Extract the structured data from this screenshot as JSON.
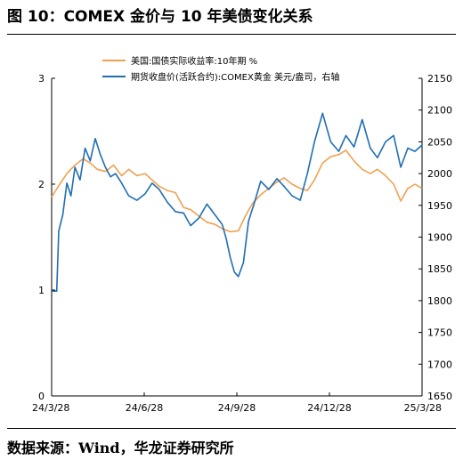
{
  "figure": {
    "title": "图 10：COMEX 金价与 10 年美债变化关系",
    "source": "数据来源：Wind，华龙证券研究所"
  },
  "chart_data": {
    "type": "line",
    "x_tick_labels": [
      "24/3/28",
      "24/6/28",
      "24/9/28",
      "24/12/28",
      "25/3/28"
    ],
    "x_range": [
      "2024-03-28",
      "2025-03-28"
    ],
    "y_left": {
      "ticks": [
        "0",
        "1",
        "2",
        "3"
      ],
      "range": [
        0,
        3
      ]
    },
    "y_right": {
      "ticks": [
        "1650",
        "1700",
        "1750",
        "1800",
        "1850",
        "1900",
        "1950",
        "2000",
        "2050",
        "2100",
        "2150"
      ],
      "range": [
        1650,
        2150
      ]
    },
    "legend_position": "top",
    "grid": false,
    "series": [
      {
        "name": "美国:国债实际收益率:10年期 %",
        "axis": "left",
        "color": "#F0A050",
        "points": [
          [
            "2024-03-28",
            1.88
          ],
          [
            "2024-04-05",
            2.0
          ],
          [
            "2024-04-12",
            2.1
          ],
          [
            "2024-04-20",
            2.18
          ],
          [
            "2024-04-28",
            2.24
          ],
          [
            "2024-05-05",
            2.2
          ],
          [
            "2024-05-12",
            2.14
          ],
          [
            "2024-05-20",
            2.12
          ],
          [
            "2024-05-28",
            2.18
          ],
          [
            "2024-06-05",
            2.08
          ],
          [
            "2024-06-12",
            2.14
          ],
          [
            "2024-06-20",
            2.08
          ],
          [
            "2024-06-28",
            2.1
          ],
          [
            "2024-07-05",
            2.04
          ],
          [
            "2024-07-12",
            1.98
          ],
          [
            "2024-07-20",
            1.94
          ],
          [
            "2024-07-28",
            1.92
          ],
          [
            "2024-08-05",
            1.78
          ],
          [
            "2024-08-12",
            1.76
          ],
          [
            "2024-08-20",
            1.7
          ],
          [
            "2024-08-28",
            1.64
          ],
          [
            "2024-09-05",
            1.62
          ],
          [
            "2024-09-12",
            1.58
          ],
          [
            "2024-09-20",
            1.55
          ],
          [
            "2024-09-28",
            1.56
          ],
          [
            "2024-10-05",
            1.7
          ],
          [
            "2024-10-12",
            1.82
          ],
          [
            "2024-10-20",
            1.9
          ],
          [
            "2024-10-28",
            1.96
          ],
          [
            "2024-11-05",
            2.02
          ],
          [
            "2024-11-12",
            2.06
          ],
          [
            "2024-11-20",
            2.0
          ],
          [
            "2024-11-28",
            1.96
          ],
          [
            "2024-12-05",
            1.94
          ],
          [
            "2024-12-12",
            2.04
          ],
          [
            "2024-12-20",
            2.2
          ],
          [
            "2024-12-28",
            2.26
          ],
          [
            "2025-01-05",
            2.28
          ],
          [
            "2025-01-12",
            2.32
          ],
          [
            "2025-01-20",
            2.22
          ],
          [
            "2025-01-28",
            2.14
          ],
          [
            "2025-02-05",
            2.1
          ],
          [
            "2025-02-12",
            2.14
          ],
          [
            "2025-02-20",
            2.08
          ],
          [
            "2025-02-28",
            2.0
          ],
          [
            "2025-03-07",
            1.84
          ],
          [
            "2025-03-14",
            1.96
          ],
          [
            "2025-03-21",
            2.0
          ],
          [
            "2025-03-28",
            1.96
          ]
        ]
      },
      {
        "name": "期货收盘价(活跃合约):COMEX黄金 美元/盎司，右轴",
        "axis": "right",
        "color": "#1F6EB4",
        "points": [
          [
            "2024-03-28",
            1815
          ],
          [
            "2024-04-02",
            1815
          ],
          [
            "2024-04-04",
            1910
          ],
          [
            "2024-04-08",
            1935
          ],
          [
            "2024-04-12",
            1985
          ],
          [
            "2024-04-16",
            1965
          ],
          [
            "2024-04-20",
            2010
          ],
          [
            "2024-04-25",
            1990
          ],
          [
            "2024-04-30",
            2040
          ],
          [
            "2024-05-05",
            2020
          ],
          [
            "2024-05-10",
            2055
          ],
          [
            "2024-05-15",
            2030
          ],
          [
            "2024-05-20",
            2010
          ],
          [
            "2024-05-25",
            1995
          ],
          [
            "2024-05-30",
            2000
          ],
          [
            "2024-06-05",
            1985
          ],
          [
            "2024-06-12",
            1965
          ],
          [
            "2024-06-20",
            1958
          ],
          [
            "2024-06-28",
            1968
          ],
          [
            "2024-07-05",
            1985
          ],
          [
            "2024-07-12",
            1975
          ],
          [
            "2024-07-20",
            1955
          ],
          [
            "2024-07-28",
            1940
          ],
          [
            "2024-08-05",
            1938
          ],
          [
            "2024-08-12",
            1918
          ],
          [
            "2024-08-20",
            1930
          ],
          [
            "2024-08-28",
            1952
          ],
          [
            "2024-09-05",
            1935
          ],
          [
            "2024-09-12",
            1920
          ],
          [
            "2024-09-16",
            1898
          ],
          [
            "2024-09-20",
            1868
          ],
          [
            "2024-09-24",
            1845
          ],
          [
            "2024-09-28",
            1838
          ],
          [
            "2024-10-03",
            1860
          ],
          [
            "2024-10-08",
            1925
          ],
          [
            "2024-10-14",
            1955
          ],
          [
            "2024-10-20",
            1988
          ],
          [
            "2024-10-28",
            1975
          ],
          [
            "2024-11-05",
            1992
          ],
          [
            "2024-11-12",
            1980
          ],
          [
            "2024-11-20",
            1965
          ],
          [
            "2024-11-28",
            1958
          ],
          [
            "2024-12-05",
            2000
          ],
          [
            "2024-12-12",
            2050
          ],
          [
            "2024-12-20",
            2095
          ],
          [
            "2024-12-28",
            2050
          ],
          [
            "2025-01-05",
            2035
          ],
          [
            "2025-01-12",
            2060
          ],
          [
            "2025-01-20",
            2042
          ],
          [
            "2025-01-28",
            2085
          ],
          [
            "2025-02-05",
            2040
          ],
          [
            "2025-02-12",
            2025
          ],
          [
            "2025-02-20",
            2050
          ],
          [
            "2025-02-28",
            2060
          ],
          [
            "2025-03-07",
            2010
          ],
          [
            "2025-03-14",
            2040
          ],
          [
            "2025-03-21",
            2035
          ],
          [
            "2025-03-28",
            2045
          ]
        ]
      }
    ]
  }
}
